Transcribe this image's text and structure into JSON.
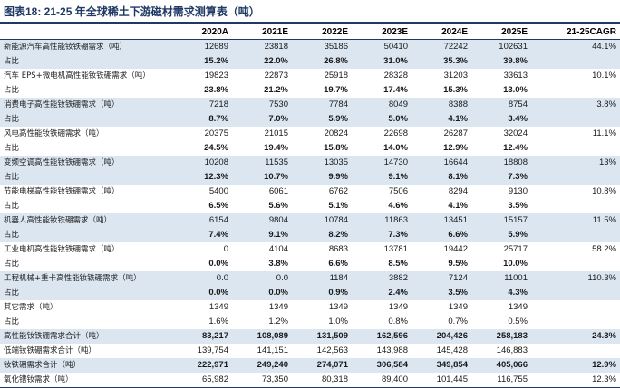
{
  "title": "图表18:   21-25 年全球稀土下游磁材需求测算表（吨）",
  "header": [
    "",
    "2020A",
    "2021E",
    "2022E",
    "2023E",
    "2024E",
    "2025E",
    "21-25CAGR"
  ],
  "rows": [
    {
      "shade": true,
      "bold": false,
      "cells": [
        "新能源汽车高性能钕铁硼需求（吨）",
        "12689",
        "23818",
        "35186",
        "50410",
        "72242",
        "102631",
        "44.1%"
      ]
    },
    {
      "shade": true,
      "bold": true,
      "cells": [
        "占比",
        "15.2%",
        "22.0%",
        "26.8%",
        "31.0%",
        "35.3%",
        "39.8%",
        ""
      ]
    },
    {
      "shade": false,
      "bold": false,
      "cells": [
        "汽车 EPS+微电机高性能钕铁硼需求（吨）",
        "19823",
        "22873",
        "25918",
        "28328",
        "31203",
        "33613",
        "10.1%"
      ]
    },
    {
      "shade": false,
      "bold": true,
      "cells": [
        "占比",
        "23.8%",
        "21.2%",
        "19.7%",
        "17.4%",
        "15.3%",
        "13.0%",
        ""
      ]
    },
    {
      "shade": true,
      "bold": false,
      "cells": [
        "消费电子高性能钕铁硼需求（吨）",
        "7218",
        "7530",
        "7784",
        "8049",
        "8388",
        "8754",
        "3.8%"
      ]
    },
    {
      "shade": true,
      "bold": true,
      "cells": [
        "占比",
        "8.7%",
        "7.0%",
        "5.9%",
        "5.0%",
        "4.1%",
        "3.4%",
        ""
      ]
    },
    {
      "shade": false,
      "bold": false,
      "cells": [
        "风电高性能钕铁硼需求（吨）",
        "20375",
        "21015",
        "20824",
        "22698",
        "26287",
        "32024",
        "11.1%"
      ]
    },
    {
      "shade": false,
      "bold": true,
      "cells": [
        "占比",
        "24.5%",
        "19.4%",
        "15.8%",
        "14.0%",
        "12.9%",
        "12.4%",
        ""
      ]
    },
    {
      "shade": true,
      "bold": false,
      "cells": [
        "变频空调高性能钕铁硼需求（吨）",
        "10208",
        "11535",
        "13035",
        "14730",
        "16644",
        "18808",
        "13%"
      ]
    },
    {
      "shade": true,
      "bold": true,
      "cells": [
        "占比",
        "12.3%",
        "10.7%",
        "9.9%",
        "9.1%",
        "8.1%",
        "7.3%",
        ""
      ]
    },
    {
      "shade": false,
      "bold": false,
      "cells": [
        "节能电梯高性能钕铁硼需求（吨）",
        "5400",
        "6061",
        "6762",
        "7506",
        "8294",
        "9130",
        "10.8%"
      ]
    },
    {
      "shade": false,
      "bold": true,
      "cells": [
        "占比",
        "6.5%",
        "5.6%",
        "5.1%",
        "4.6%",
        "4.1%",
        "3.5%",
        ""
      ]
    },
    {
      "shade": true,
      "bold": false,
      "cells": [
        "机器人高性能钕铁硼需求（吨）",
        "6154",
        "9804",
        "10784",
        "11863",
        "13451",
        "15157",
        "11.5%"
      ]
    },
    {
      "shade": true,
      "bold": true,
      "cells": [
        "占比",
        "7.4%",
        "9.1%",
        "8.2%",
        "7.3%",
        "6.6%",
        "5.9%",
        ""
      ]
    },
    {
      "shade": false,
      "bold": false,
      "cells": [
        "工业电机高性能钕铁硼需求（吨）",
        "0",
        "4104",
        "8683",
        "13781",
        "19442",
        "25717",
        "58.2%"
      ]
    },
    {
      "shade": false,
      "bold": true,
      "cells": [
        "占比",
        "0.0%",
        "3.8%",
        "6.6%",
        "8.5%",
        "9.5%",
        "10.0%",
        ""
      ]
    },
    {
      "shade": true,
      "bold": false,
      "cells": [
        "工程机械+重卡高性能钕铁硼需求（吨）",
        "0.0",
        "0.0",
        "1184",
        "3882",
        "7124",
        "11001",
        "110.3%"
      ]
    },
    {
      "shade": true,
      "bold": true,
      "cells": [
        "占比",
        "0.0%",
        "0.0%",
        "0.9%",
        "2.4%",
        "3.5%",
        "4.3%",
        ""
      ]
    },
    {
      "shade": false,
      "bold": false,
      "cells": [
        "其它需求（吨）",
        "1349",
        "1349",
        "1349",
        "1349",
        "1349",
        "1349",
        ""
      ]
    },
    {
      "shade": false,
      "bold": false,
      "cells": [
        "占比",
        "1.6%",
        "1.2%",
        "1.0%",
        "0.8%",
        "0.7%",
        "0.5%",
        ""
      ]
    },
    {
      "shade": true,
      "bold": true,
      "cells": [
        "高性能钕铁硼需求合计（吨）",
        "83,217",
        "108,089",
        "131,509",
        "162,596",
        "204,426",
        "258,183",
        "24.3%"
      ]
    },
    {
      "shade": false,
      "bold": false,
      "cells": [
        "低端钕铁硼需求合计（吨）",
        "139,754",
        "141,151",
        "142,563",
        "143,988",
        "145,428",
        "146,883",
        ""
      ]
    },
    {
      "shade": true,
      "bold": true,
      "cells": [
        "钕铁硼需求合计（吨）",
        "222,971",
        "249,240",
        "274,071",
        "306,584",
        "349,854",
        "405,066",
        "12.9%"
      ]
    },
    {
      "shade": false,
      "bold": false,
      "cells": [
        "氧化镨钕需求（吨）",
        "65,982",
        "73,350",
        "80,318",
        "89,400",
        "101,445",
        "116,755",
        "12.3%"
      ]
    }
  ]
}
